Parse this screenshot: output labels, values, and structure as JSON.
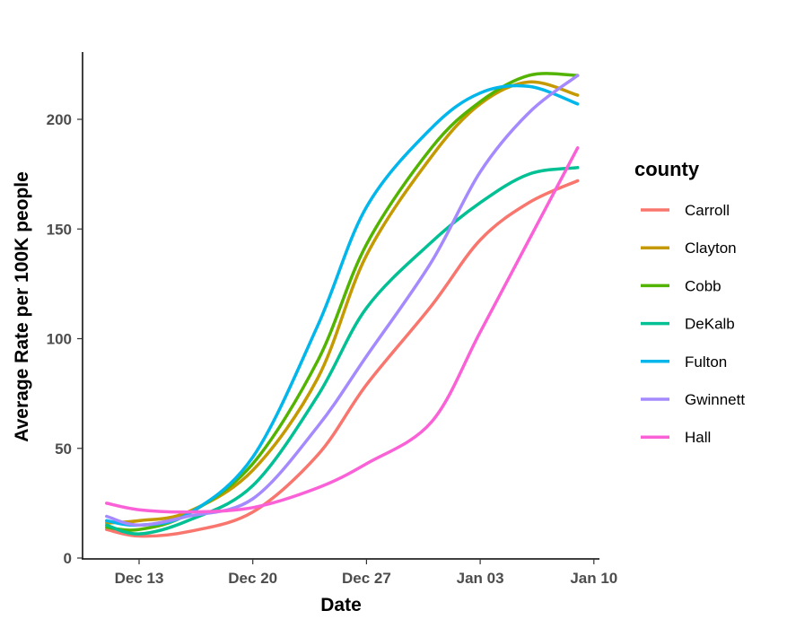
{
  "chart_data": {
    "type": "line",
    "xlabel": "Date",
    "ylabel": "Average Rate per 100K people",
    "x_dates": [
      "Dec 11",
      "Dec 13",
      "Dec 16",
      "Dec 20",
      "Dec 24",
      "Dec 27",
      "Dec 31",
      "Jan 03",
      "Jan 06",
      "Jan 09"
    ],
    "x_ticks": [
      "Dec 13",
      "Dec 20",
      "Dec 27",
      "Jan 03",
      "Jan 10"
    ],
    "y_ticks": [
      0,
      50,
      100,
      150,
      200
    ],
    "ylim": [
      0,
      230
    ],
    "legend_title": "county",
    "legend_position": "right",
    "grid": false,
    "series": [
      {
        "name": "Carroll",
        "color": "#F8766D",
        "values": [
          13,
          10,
          12,
          21,
          47,
          79,
          115,
          145,
          162,
          172
        ]
      },
      {
        "name": "Clayton",
        "color": "#C49A00",
        "values": [
          16,
          17,
          21,
          40,
          82,
          138,
          183,
          207,
          217,
          211
        ]
      },
      {
        "name": "Cobb",
        "color": "#53B400",
        "values": [
          14,
          13,
          20,
          43,
          90,
          143,
          187,
          208,
          220,
          220
        ]
      },
      {
        "name": "DeKalb",
        "color": "#00C094",
        "values": [
          15,
          11,
          17,
          33,
          74,
          114,
          144,
          162,
          175,
          178
        ]
      },
      {
        "name": "Fulton",
        "color": "#00B6EB",
        "values": [
          17,
          15,
          20,
          46,
          106,
          160,
          196,
          212,
          215,
          207
        ]
      },
      {
        "name": "Gwinnett",
        "color": "#A58AFF",
        "values": [
          19,
          15,
          19,
          27,
          60,
          92,
          135,
          176,
          203,
          220
        ]
      },
      {
        "name": "Hall",
        "color": "#FB61D7",
        "values": [
          25,
          22,
          21,
          23,
          32,
          43,
          62,
          103,
          145,
          187
        ]
      }
    ]
  }
}
